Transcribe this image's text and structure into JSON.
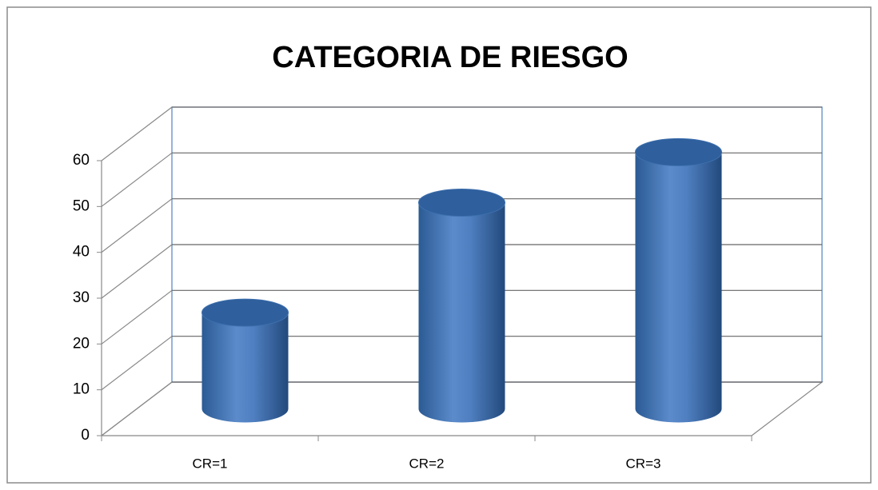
{
  "chart_data": {
    "type": "bar",
    "title": "CATEGORIA DE RIESGO",
    "categories": [
      "CR=1",
      "CR=2",
      "CR=3"
    ],
    "values": [
      21,
      45,
      56
    ],
    "color": "#4f81bd",
    "ylim": [
      0,
      60
    ],
    "yticks": [
      0,
      10,
      20,
      30,
      40,
      50,
      60
    ],
    "grid": true
  }
}
